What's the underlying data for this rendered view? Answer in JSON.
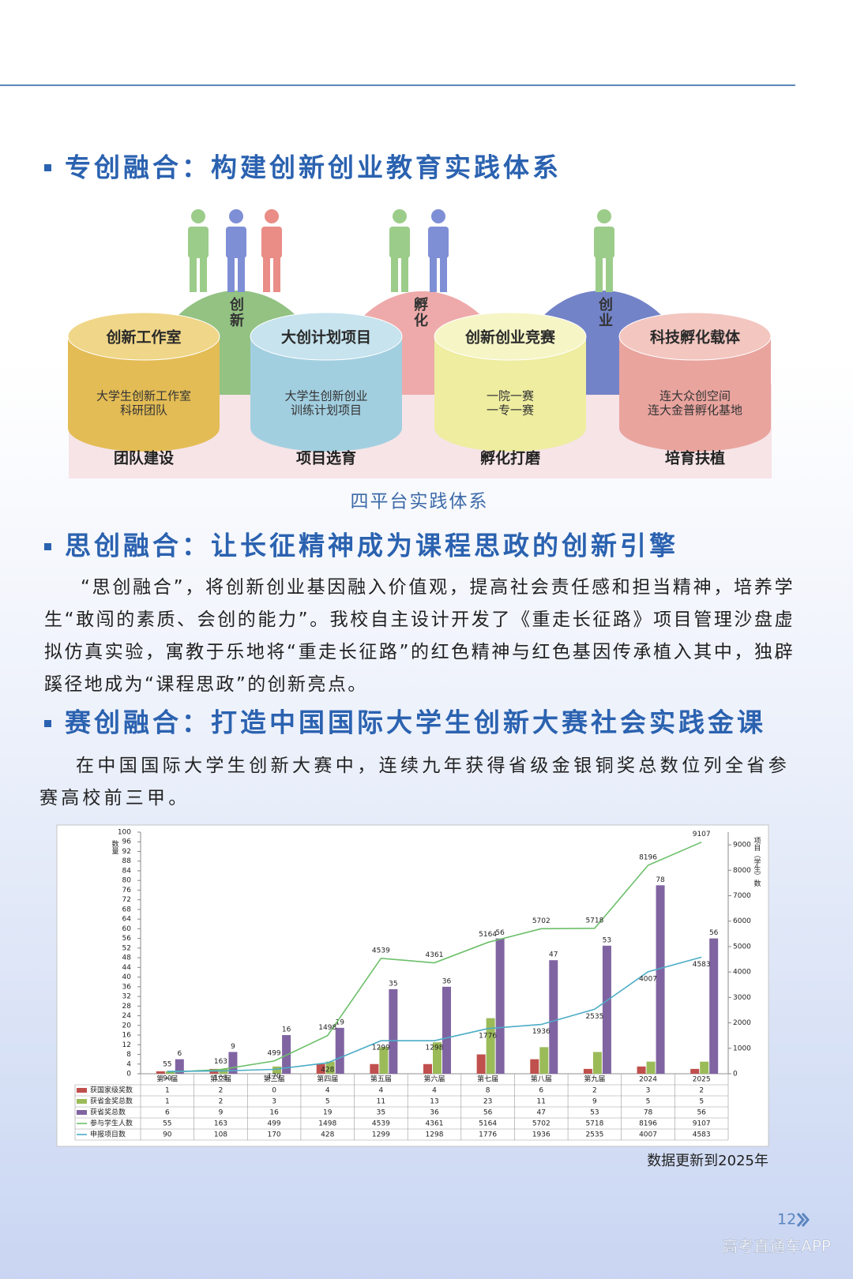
{
  "section1": {
    "heading": "专创融合：构建创新创业教育实践体系",
    "diagram": {
      "domes": [
        "创新",
        "孵化",
        "创业"
      ],
      "platforms": [
        {
          "title": "创新工作室",
          "lines": [
            "大学生创新工作室",
            "科研团队"
          ],
          "stage": "团队建设"
        },
        {
          "title": "大创计划项目",
          "lines": [
            "大学生创新创业",
            "训练计划项目"
          ],
          "stage": "项目选育"
        },
        {
          "title": "创新创业竞赛",
          "lines": [
            "一院一赛",
            "一专一赛"
          ],
          "stage": "孵化打磨"
        },
        {
          "title": "科技孵化载体",
          "lines": [
            "连大众创空间",
            "连大金普孵化基地"
          ],
          "stage": "培育扶植"
        }
      ],
      "caption": "四平台实践体系"
    }
  },
  "section2": {
    "heading": "思创融合：让长征精神成为课程思政的创新引擎",
    "paragraph": "“思创融合”，将创新创业基因融入价值观，提高社会责任感和担当精神，培养学生“敢闯的素质、会创的能力”。我校自主设计开发了《重走长征路》项目管理沙盘虚拟仿真实验，寓教于乐地将“重走长征路”的红色精神与红色基因传承植入其中，独辟蹊径地成为“课程思政”的创新亮点。"
  },
  "section3": {
    "heading": "赛创融合：打造中国国际大学生创新大赛社会实践金课",
    "paragraph": "在中国国际大学生创新大赛中，连续九年获得省级金银铜奖总数位列全省参赛高校前三甲。"
  },
  "chart_data": {
    "type": "bar",
    "categories": [
      "第一届",
      "第二届",
      "第三届",
      "第四届",
      "第五届",
      "第六届",
      "第七届",
      "第八届",
      "第九届",
      "2024",
      "2025"
    ],
    "series": [
      {
        "name": "获国家级奖数",
        "color": "#c0504d",
        "values": [
          1,
          2,
          0,
          4,
          4,
          4,
          8,
          6,
          2,
          3,
          2
        ]
      },
      {
        "name": "获省金奖总数",
        "color": "#9bbb59",
        "values": [
          1,
          2,
          3,
          5,
          11,
          13,
          23,
          11,
          9,
          5,
          5
        ]
      },
      {
        "name": "获省奖总数",
        "color": "#8064a2",
        "values": [
          6,
          9,
          16,
          19,
          35,
          36,
          56,
          47,
          53,
          78,
          56
        ]
      },
      {
        "name": "参与学生人数",
        "color": "#6cbf6a",
        "type": "line",
        "axis": "y2",
        "values": [
          55,
          163,
          499,
          1498,
          4539,
          4361,
          5164,
          5702,
          5718,
          8196,
          9107
        ]
      },
      {
        "name": "申报项目数",
        "color": "#4bacc6",
        "type": "line",
        "axis": "y2",
        "values": [
          90,
          108,
          170,
          428,
          1299,
          1298,
          1776,
          1936,
          2535,
          4007,
          4583
        ]
      }
    ],
    "ylabel": "数量",
    "y2label": "项目（学生）数",
    "ylim": [
      0,
      100
    ],
    "yticks": [
      0,
      4,
      8,
      12,
      16,
      20,
      24,
      28,
      32,
      36,
      40,
      44,
      48,
      52,
      56,
      60,
      64,
      68,
      72,
      76,
      80,
      84,
      88,
      92,
      96,
      100
    ],
    "y2lim": [
      0,
      9500
    ],
    "y2ticks": [
      0,
      1000,
      2000,
      3000,
      4000,
      5000,
      6000,
      7000,
      8000,
      9000
    ]
  },
  "footnote": "数据更新到2025年",
  "page_number": "12",
  "watermark": "高考直通车APP"
}
